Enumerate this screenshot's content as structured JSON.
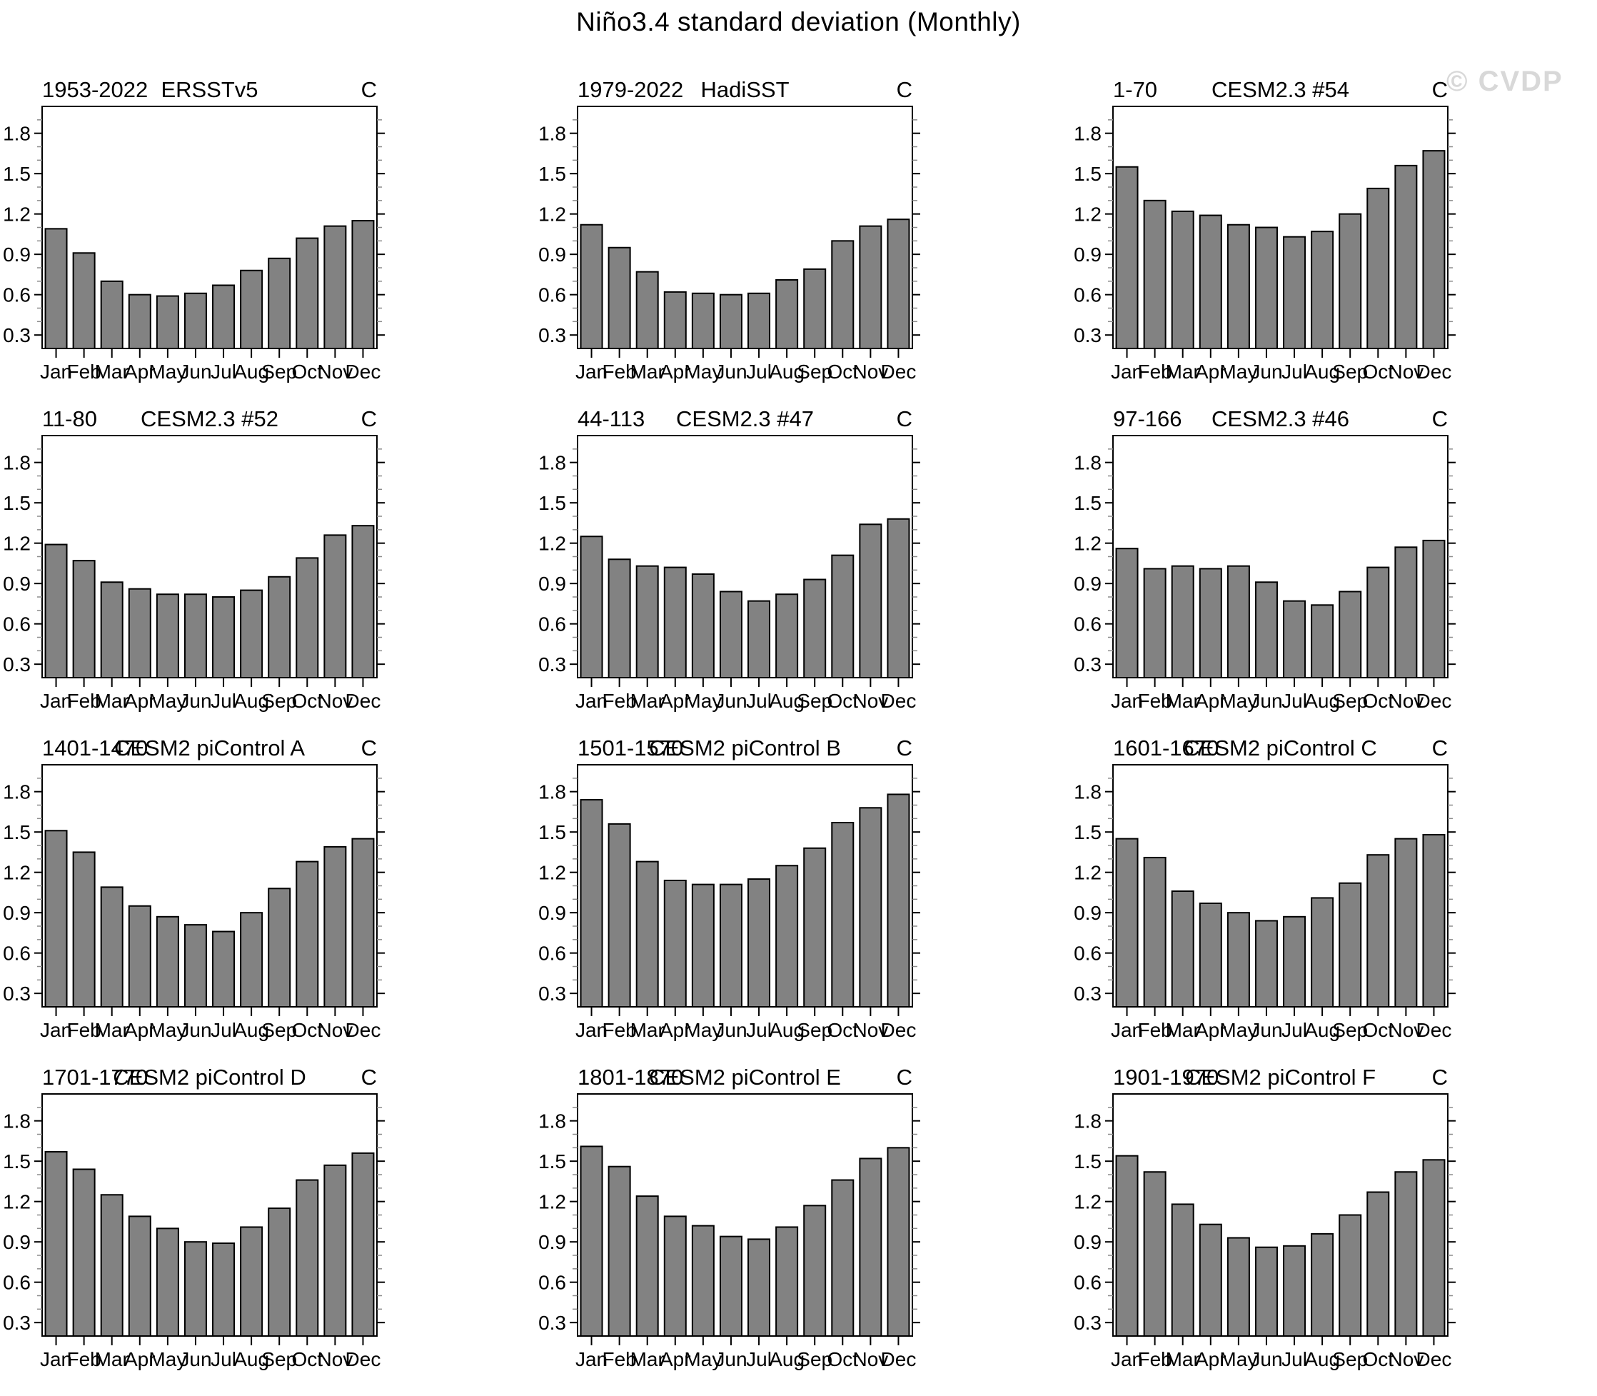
{
  "page": {
    "title": "Niño3.4 standard deviation (Monthly)",
    "watermark": "© CVDP"
  },
  "colors": {
    "background": "#ffffff",
    "bar_fill": "#828282",
    "bar_stroke": "#000000",
    "axis": "#000000",
    "minor_tick": "#8c8c8c",
    "text": "#000000",
    "watermark": "#d8d8d8"
  },
  "chart_data": {
    "type": "bar",
    "layout": "small-multiples 4 rows x 3 cols",
    "title": "Niño3.4 standard deviation (Monthly)",
    "categories": [
      "Jan",
      "Feb",
      "Mar",
      "Apr",
      "May",
      "Jun",
      "Jul",
      "Aug",
      "Sep",
      "Oct",
      "Nov",
      "Dec"
    ],
    "ylim": [
      0.2,
      2.0
    ],
    "yticks_major": [
      0.3,
      0.6,
      0.9,
      1.2,
      1.5,
      1.8
    ],
    "ytick_minor_step": 0.1,
    "unit_label": "C",
    "grid": false,
    "legend": "none",
    "panels": [
      {
        "period": "1953-2022",
        "title": "ERSSTv5",
        "values": [
          1.09,
          0.91,
          0.7,
          0.6,
          0.59,
          0.61,
          0.67,
          0.78,
          0.87,
          1.02,
          1.11,
          1.15
        ]
      },
      {
        "period": "1979-2022",
        "title": "HadiSST",
        "values": [
          1.12,
          0.95,
          0.77,
          0.62,
          0.61,
          0.6,
          0.61,
          0.71,
          0.79,
          1.0,
          1.11,
          1.16
        ]
      },
      {
        "period": "1-70",
        "title": "CESM2.3 #54",
        "values": [
          1.55,
          1.3,
          1.22,
          1.19,
          1.12,
          1.1,
          1.03,
          1.07,
          1.2,
          1.39,
          1.56,
          1.67
        ]
      },
      {
        "period": "11-80",
        "title": "CESM2.3 #52",
        "values": [
          1.19,
          1.07,
          0.91,
          0.86,
          0.82,
          0.82,
          0.8,
          0.85,
          0.95,
          1.09,
          1.26,
          1.33
        ]
      },
      {
        "period": "44-113",
        "title": "CESM2.3 #47",
        "values": [
          1.25,
          1.08,
          1.03,
          1.02,
          0.97,
          0.84,
          0.77,
          0.82,
          0.93,
          1.11,
          1.34,
          1.38
        ]
      },
      {
        "period": "97-166",
        "title": "CESM2.3 #46",
        "values": [
          1.16,
          1.01,
          1.03,
          1.01,
          1.03,
          0.91,
          0.77,
          0.74,
          0.84,
          1.02,
          1.17,
          1.22
        ]
      },
      {
        "period": "1401-1470",
        "title": "CESM2 piControl A",
        "values": [
          1.51,
          1.35,
          1.09,
          0.95,
          0.87,
          0.81,
          0.76,
          0.9,
          1.08,
          1.28,
          1.39,
          1.45
        ]
      },
      {
        "period": "1501-1570",
        "title": "CESM2 piControl B",
        "values": [
          1.74,
          1.56,
          1.28,
          1.14,
          1.11,
          1.11,
          1.15,
          1.25,
          1.38,
          1.57,
          1.68,
          1.78
        ]
      },
      {
        "period": "1601-1670",
        "title": "CESM2 piControl C",
        "values": [
          1.45,
          1.31,
          1.06,
          0.97,
          0.9,
          0.84,
          0.87,
          1.01,
          1.12,
          1.33,
          1.45,
          1.48
        ]
      },
      {
        "period": "1701-1770",
        "title": "CESM2 piControl D",
        "values": [
          1.57,
          1.44,
          1.25,
          1.09,
          1.0,
          0.9,
          0.89,
          1.01,
          1.15,
          1.36,
          1.47,
          1.56
        ]
      },
      {
        "period": "1801-1870",
        "title": "CESM2 piControl E",
        "values": [
          1.61,
          1.46,
          1.24,
          1.09,
          1.02,
          0.94,
          0.92,
          1.01,
          1.17,
          1.36,
          1.52,
          1.6
        ]
      },
      {
        "period": "1901-1970",
        "title": "CESM2 piControl F",
        "values": [
          1.54,
          1.42,
          1.18,
          1.03,
          0.93,
          0.86,
          0.87,
          0.96,
          1.1,
          1.27,
          1.42,
          1.51
        ]
      }
    ]
  }
}
